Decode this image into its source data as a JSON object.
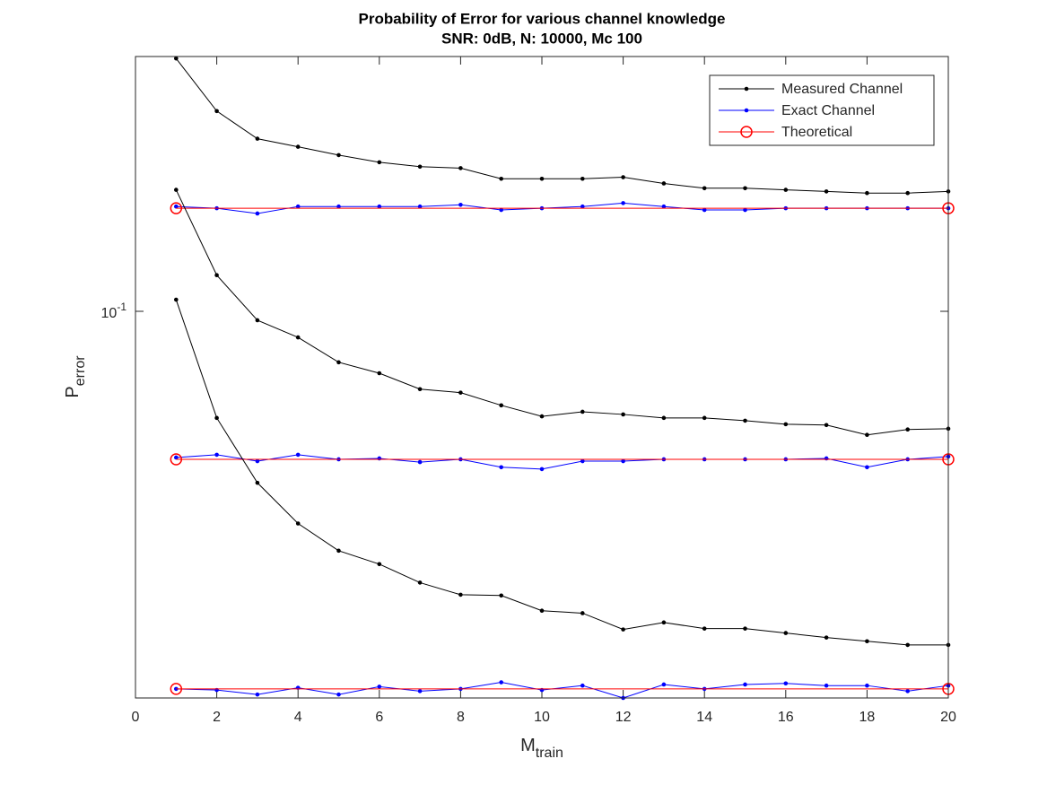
{
  "chart_data": {
    "type": "line",
    "title": "Probability of Error for various channel knowledge",
    "subtitle": "SNR: 0dB, N: 10000, Mc 100",
    "x_label": "M",
    "x_label_subscript": "train",
    "y_label": "P",
    "y_label_subscript": "error",
    "x": [
      1,
      2,
      3,
      4,
      5,
      6,
      7,
      8,
      9,
      10,
      11,
      12,
      13,
      14,
      15,
      16,
      17,
      18,
      19,
      20
    ],
    "xlim": [
      0,
      20
    ],
    "xticks": [
      0,
      2,
      4,
      6,
      8,
      10,
      12,
      14,
      16,
      18,
      20
    ],
    "ylim": [
      0.0224,
      0.268
    ],
    "yscale": "log",
    "yticks": [
      {
        "value": 0.1,
        "label": "10",
        "label_exponent": "-1"
      }
    ],
    "legend": "northeast",
    "series": [
      {
        "name": "Measured Channel",
        "color": "#000000",
        "marker": "dot",
        "values": [
          0.266,
          0.217,
          0.195,
          0.189,
          0.183,
          0.178,
          0.175,
          0.174,
          0.167,
          0.167,
          0.167,
          0.168,
          0.164,
          0.161,
          0.161,
          0.16,
          0.159,
          0.158,
          0.158,
          0.159
        ]
      },
      {
        "name": "Exact Channel",
        "color": "#0000ff",
        "marker": "dot",
        "values": [
          0.15,
          0.149,
          0.146,
          0.15,
          0.15,
          0.15,
          0.15,
          0.151,
          0.148,
          0.149,
          0.15,
          0.152,
          0.15,
          0.148,
          0.148,
          0.149,
          0.149,
          0.149,
          0.149,
          0.149
        ]
      },
      {
        "name": "Theoretical",
        "color": "#ff0000",
        "marker": "circle",
        "x": [
          1,
          20
        ],
        "values": [
          0.149,
          0.149
        ]
      },
      {
        "color": "#000000",
        "marker": "dot",
        "values": [
          0.16,
          0.115,
          0.0966,
          0.0904,
          0.0821,
          0.0787,
          0.074,
          0.073,
          0.0695,
          0.0666,
          0.0678,
          0.0671,
          0.0662,
          0.0662,
          0.0655,
          0.0646,
          0.0644,
          0.062,
          0.0633,
          0.0635
        ]
      },
      {
        "color": "#0000ff",
        "marker": "dot",
        "values": [
          0.0568,
          0.0574,
          0.056,
          0.0574,
          0.0564,
          0.0566,
          0.0558,
          0.0564,
          0.0547,
          0.0543,
          0.056,
          0.056,
          0.0564,
          0.0564,
          0.0564,
          0.0564,
          0.0566,
          0.0547,
          0.0564,
          0.057
        ]
      },
      {
        "color": "#ff0000",
        "marker": "circle",
        "x": [
          1,
          20
        ],
        "values": [
          0.0564,
          0.0564
        ]
      },
      {
        "color": "#000000",
        "marker": "dot",
        "values": [
          0.1046,
          0.0662,
          0.0515,
          0.044,
          0.0396,
          0.0376,
          0.035,
          0.0334,
          0.0333,
          0.0314,
          0.0311,
          0.0292,
          0.03,
          0.0293,
          0.0293,
          0.0288,
          0.0283,
          0.0279,
          0.0275,
          0.0275
        ]
      },
      {
        "color": "#0000ff",
        "marker": "dot",
        "values": [
          0.0232,
          0.0231,
          0.0227,
          0.0233,
          0.0227,
          0.0234,
          0.023,
          0.0232,
          0.0238,
          0.0231,
          0.0235,
          0.0224,
          0.0236,
          0.0232,
          0.0236,
          0.0237,
          0.0235,
          0.0235,
          0.023,
          0.0235
        ]
      },
      {
        "color": "#ff0000",
        "marker": "circle",
        "x": [
          1,
          20
        ],
        "values": [
          0.0232,
          0.0232
        ]
      }
    ]
  }
}
